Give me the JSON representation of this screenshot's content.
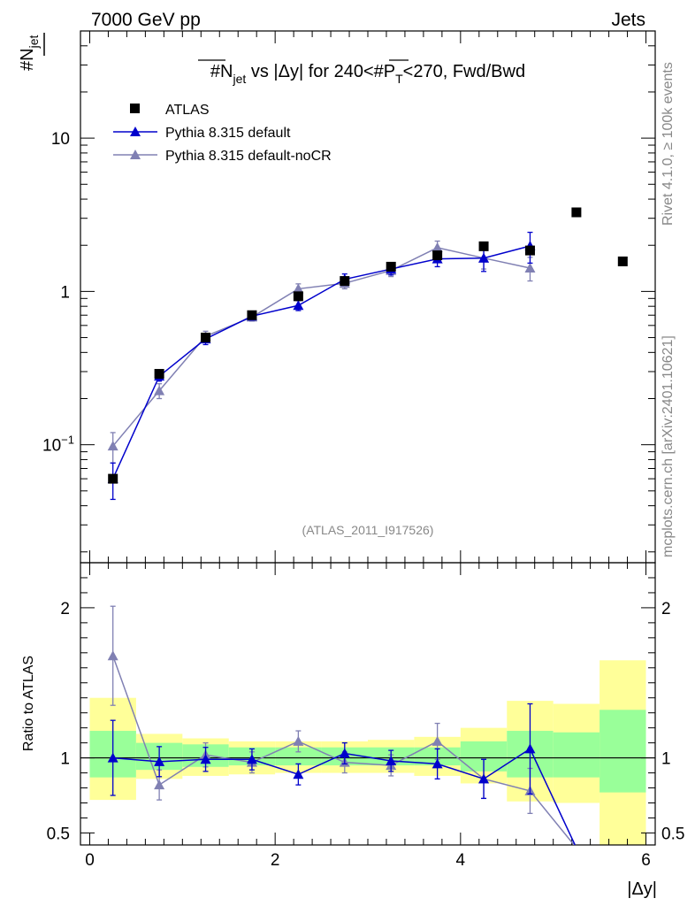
{
  "header": {
    "left": "7000 GeV pp",
    "right": "Jets",
    "side_top": "Rivet 4.1.0, ≥ 100k events",
    "side_bottom": "mcplots.cern.ch [arXiv:2401.10621]",
    "ylabel_top": "#N",
    "ylabel_top_sub": "jet",
    "ylabel_bottom": "Ratio to ATLAS",
    "xlabel": "|Δy|",
    "analysis_tag": "(ATLAS_2011_I917526)"
  },
  "title_parts": {
    "a": "#N",
    "a_sub": "jet",
    "b": " vs |Δy| for 240<#P",
    "b_sub": "T",
    "c": "<270, Fwd/Bwd"
  },
  "colors": {
    "atlas": "#000000",
    "default": "#0000cc",
    "nocr": "#8080b3",
    "band_inner": "#99ff99",
    "band_outer": "#ffff99"
  },
  "chart_data": [
    {
      "type": "scatter",
      "panel": "main",
      "yscale": "log",
      "xlim": [
        -0.1,
        6.1
      ],
      "ylim": [
        0.017,
        50
      ],
      "x_ticks": [
        0,
        2,
        4,
        6
      ],
      "y_ticks": [
        {
          "value": 0.1,
          "label": "10",
          "sup": "−1"
        },
        {
          "value": 1,
          "label": "1",
          "sup": ""
        },
        {
          "value": 10,
          "label": "10",
          "sup": ""
        }
      ],
      "legend_position": "top-left",
      "series": [
        {
          "name": "ATLAS",
          "marker": "square",
          "x": [
            0.25,
            0.75,
            1.25,
            1.75,
            2.25,
            2.75,
            3.25,
            3.75,
            4.25,
            4.75,
            5.25,
            5.75
          ],
          "y": [
            0.06,
            0.29,
            0.5,
            0.7,
            0.93,
            1.17,
            1.45,
            1.72,
            1.97,
            1.85,
            3.28,
            1.57
          ]
        },
        {
          "name": "Pythia 8.315 default",
          "marker": "triangle",
          "x": [
            0.25,
            0.75,
            1.25,
            1.75,
            2.25,
            2.75,
            3.25,
            3.75,
            4.25,
            4.75
          ],
          "y": [
            0.06,
            0.28,
            0.49,
            0.69,
            0.81,
            1.2,
            1.4,
            1.63,
            1.65,
            1.98
          ],
          "err": [
            0.016,
            0.02,
            0.04,
            0.04,
            0.06,
            0.1,
            0.12,
            0.18,
            0.3,
            0.45
          ]
        },
        {
          "name": "Pythia 8.315 default-noCR",
          "marker": "triangle",
          "x": [
            0.25,
            0.75,
            1.25,
            1.75,
            2.25,
            2.75,
            3.25,
            3.75,
            4.25,
            4.75
          ],
          "y": [
            0.098,
            0.225,
            0.51,
            0.68,
            1.04,
            1.13,
            1.37,
            1.93,
            1.65,
            1.42
          ],
          "err": [
            0.022,
            0.025,
            0.04,
            0.04,
            0.08,
            0.09,
            0.12,
            0.2,
            0.25,
            0.25
          ]
        }
      ]
    },
    {
      "type": "line",
      "panel": "ratio",
      "ylabel": "Ratio to ATLAS",
      "xlabel": "|Δy|",
      "xlim": [
        -0.1,
        6.1
      ],
      "ylim": [
        0.42,
        2.3
      ],
      "x_ticks": [
        0,
        2,
        4,
        6
      ],
      "y_ticks": [
        0.5,
        1,
        2
      ],
      "bands": {
        "edges": [
          0,
          0.5,
          1,
          1.5,
          2,
          2.5,
          3,
          3.5,
          4,
          4.5,
          5,
          5.5,
          6
        ],
        "inner_low": [
          0.87,
          0.92,
          0.94,
          0.95,
          0.95,
          0.95,
          0.95,
          0.95,
          0.91,
          0.87,
          0.87,
          0.77
        ],
        "inner_high": [
          1.18,
          1.1,
          1.09,
          1.07,
          1.07,
          1.07,
          1.07,
          1.07,
          1.11,
          1.18,
          1.17,
          1.32
        ],
        "outer_low": [
          0.72,
          0.86,
          0.88,
          0.89,
          0.9,
          0.9,
          0.9,
          0.88,
          0.83,
          0.71,
          0.7,
          0.41
        ],
        "outer_high": [
          1.4,
          1.16,
          1.13,
          1.11,
          1.11,
          1.11,
          1.12,
          1.14,
          1.2,
          1.38,
          1.36,
          1.65
        ]
      },
      "series": [
        {
          "name": "Pythia 8.315 default",
          "x": [
            0.25,
            0.75,
            1.25,
            1.75,
            2.25,
            2.75,
            3.25,
            3.75,
            4.25,
            4.75,
            5.25
          ],
          "y": [
            1.0,
            0.975,
            0.99,
            0.99,
            0.89,
            1.03,
            0.98,
            0.96,
            0.86,
            1.06,
            0.4
          ],
          "err": [
            0.25,
            0.1,
            0.08,
            0.07,
            0.07,
            0.07,
            0.07,
            0.1,
            0.13,
            0.3,
            0
          ]
        },
        {
          "name": "Pythia 8.315 default-noCR",
          "x": [
            0.25,
            0.75,
            1.25,
            1.75,
            2.25,
            2.75,
            3.25,
            3.75,
            4.25,
            4.75,
            5.25
          ],
          "y": [
            1.68,
            0.82,
            1.02,
            0.97,
            1.11,
            0.97,
            0.95,
            1.11,
            0.86,
            0.78,
            0.4
          ],
          "err": [
            0.33,
            0.1,
            0.08,
            0.07,
            0.07,
            0.07,
            0.07,
            0.12,
            0.13,
            0.15,
            0
          ]
        }
      ]
    }
  ]
}
